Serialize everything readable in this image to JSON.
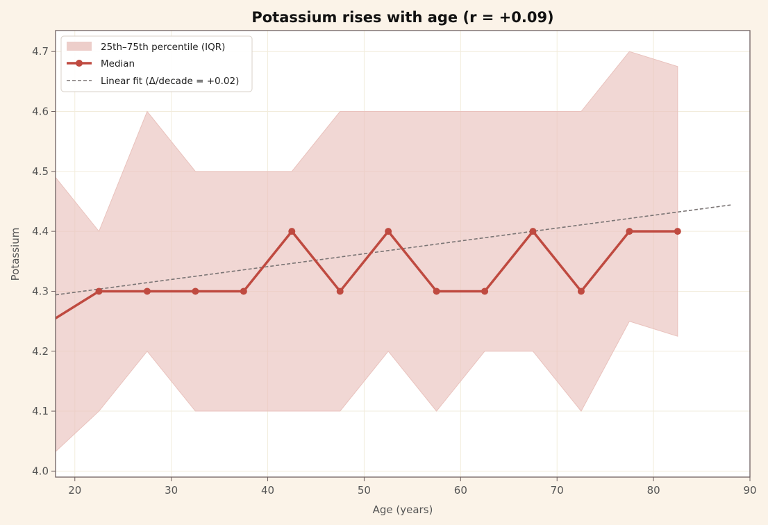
{
  "chart_data": {
    "type": "line",
    "title": "Potassium rises with age (r = +0.09)",
    "xlabel": "Age (years)",
    "ylabel": "Potassium",
    "xlim": [
      18,
      90
    ],
    "ylim": [
      3.99,
      4.735
    ],
    "x_ticks": [
      20,
      30,
      40,
      50,
      60,
      70,
      80,
      90
    ],
    "y_ticks": [
      4.0,
      4.1,
      4.2,
      4.3,
      4.4,
      4.5,
      4.6,
      4.7
    ],
    "grid": true,
    "legend_position": "top-left",
    "colors": {
      "median": "#bf4a40",
      "band": "#e9c2bd",
      "fit": "#7a7474",
      "axes": "#6e6060",
      "grid": "#f2ecdc",
      "plot_bg": "#ffffff",
      "page_bg": "#fbf3e8"
    },
    "series": [
      {
        "name": "Median",
        "type": "line",
        "x": [
          17.5,
          22.5,
          27.5,
          32.5,
          37.5,
          42.5,
          47.5,
          52.5,
          57.5,
          62.5,
          67.5,
          72.5,
          77.5,
          82.5
        ],
        "values": [
          4.25,
          4.3,
          4.3,
          4.3,
          4.3,
          4.4,
          4.3,
          4.4,
          4.3,
          4.3,
          4.4,
          4.3,
          4.4,
          4.4
        ]
      },
      {
        "name": "25th–75th percentile (IQR)",
        "type": "band",
        "x": [
          17.5,
          22.5,
          27.5,
          32.5,
          37.5,
          42.5,
          47.5,
          52.5,
          57.5,
          62.5,
          67.5,
          72.5,
          77.5,
          82.5
        ],
        "lower": [
          4.025,
          4.1,
          4.2,
          4.1,
          4.1,
          4.1,
          4.1,
          4.2,
          4.1,
          4.2,
          4.2,
          4.1,
          4.25,
          4.225
        ],
        "upper": [
          4.5,
          4.4,
          4.6,
          4.5,
          4.5,
          4.5,
          4.6,
          4.6,
          4.6,
          4.6,
          4.6,
          4.6,
          4.7,
          4.675
        ]
      },
      {
        "name": "Linear fit (Δ/decade = +0.02)",
        "type": "fit",
        "x": [
          18,
          88
        ],
        "values": [
          4.294,
          4.444
        ]
      }
    ]
  }
}
